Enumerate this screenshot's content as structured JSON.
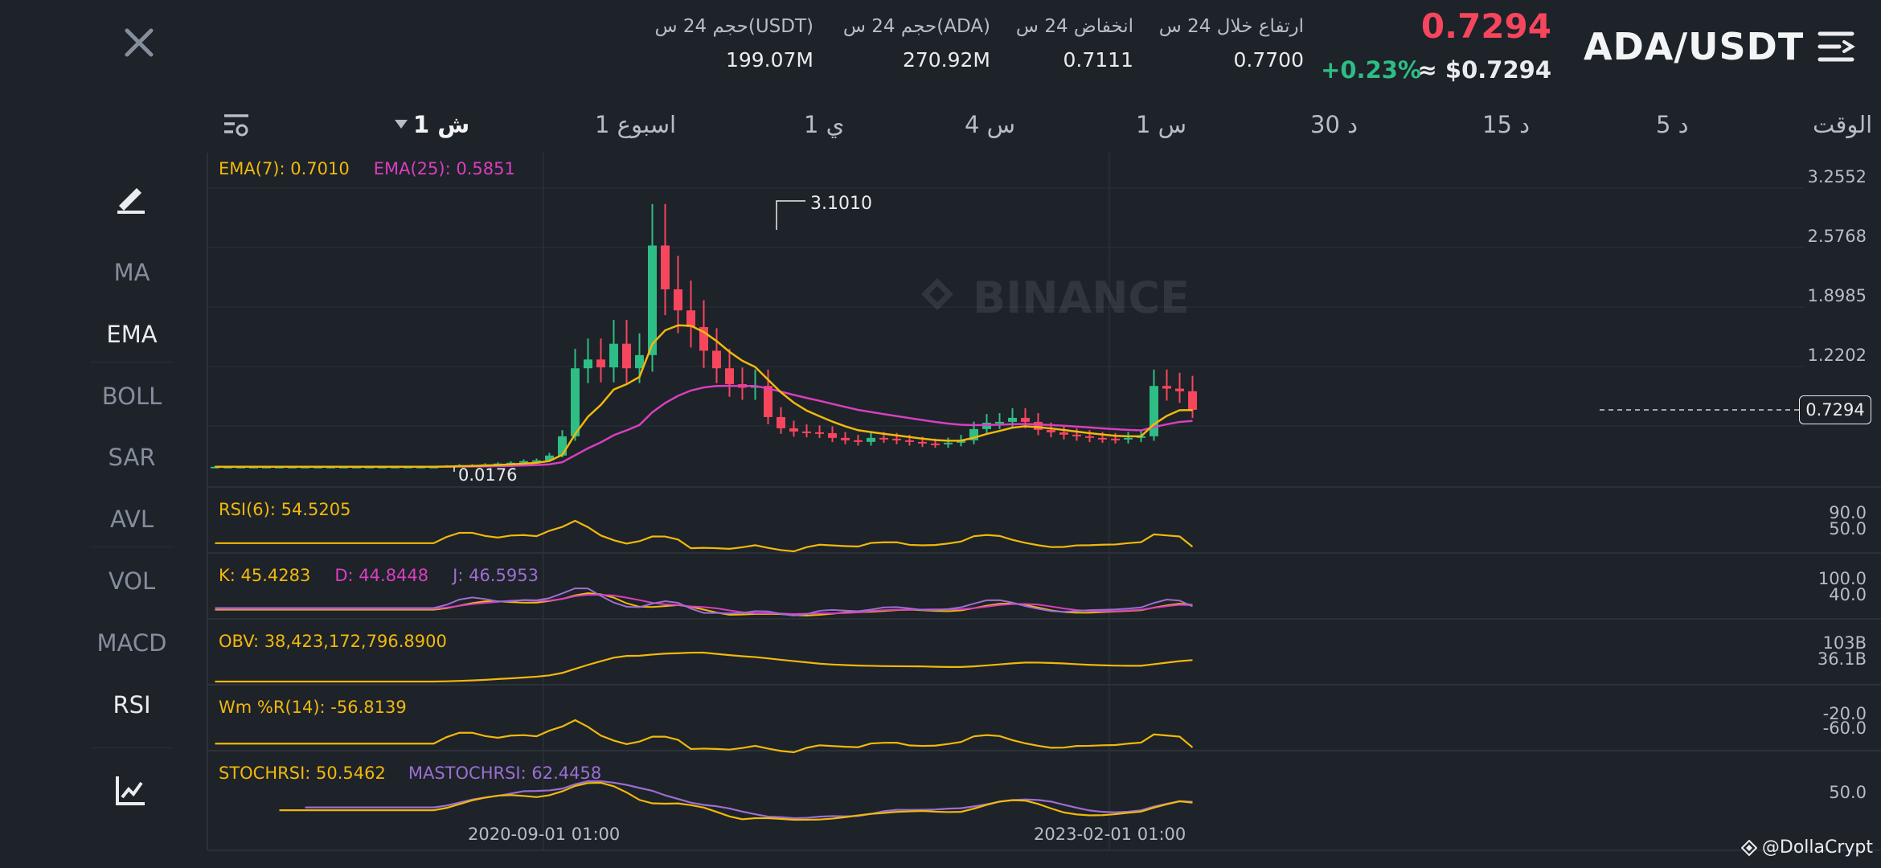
{
  "header": {
    "pair": "ADA/USDT",
    "last_price": "0.7294",
    "usd_price": "≈ $0.7294",
    "change_pct": "+0.23%",
    "stats": [
      {
        "label": "ارتفاع خلال 24 س",
        "value": "0.7700"
      },
      {
        "label": "انخفاض 24 س",
        "value": "0.7111"
      },
      {
        "label": "حجم 24 س(ADA)",
        "value": "270.92M"
      },
      {
        "label": "حجم 24 س(USDT)",
        "value": "199.07M"
      }
    ]
  },
  "timeframes": {
    "label": "الوقت",
    "items": [
      "5 د",
      "15 د",
      "30 د",
      "1 س",
      "4 س",
      "1 ي",
      "1 اسبوع",
      "1 ش"
    ],
    "active": "1 ش"
  },
  "indicators": {
    "items": [
      "MA",
      "EMA",
      "BOLL",
      "SAR",
      "AVL",
      "VOL",
      "MACD",
      "RSI"
    ],
    "active": [
      "EMA",
      "RSI"
    ]
  },
  "legends": {
    "ema7": "EMA(7): 0.7010",
    "ema25": "EMA(25): 0.5851",
    "rsi": "RSI(6): 54.5205",
    "k": "K: 45.4283",
    "d": "D: 44.8448",
    "j": "J: 46.5953",
    "obv": "OBV: 38,423,172,796.8900",
    "wr": "Wm %R(14): -56.8139",
    "stochrsi": "STOCHRSI: 50.5462",
    "mastochrsi": "MASTOCHRSI: 62.4458"
  },
  "price_scale": [
    "3.2552",
    "2.5768",
    "1.8985",
    "1.2202"
  ],
  "current_price_tag": "0.7294",
  "sub_scales": {
    "rsi": [
      "90.0",
      "50.0"
    ],
    "kdj": [
      "100.0",
      "40.0"
    ],
    "obv": [
      "103B",
      "36.1B"
    ],
    "wr": [
      "-20.0",
      "-60.0"
    ],
    "stochrsi": [
      "50.0"
    ]
  },
  "markers": {
    "high": "3.1010",
    "low": "0.0176"
  },
  "date_labels": [
    "2020-09-01 01:00",
    "2023-02-01 01:00"
  ],
  "watermark": "BINANCE",
  "credit": "@DollaCrypt",
  "colors": {
    "up": "#2ebd85",
    "down": "#f6465d",
    "ema7": "#f0b90b",
    "ema25": "#d83fbf",
    "stoch_ma": "#9b6fd1",
    "background": "#1e2229"
  },
  "icons": {
    "close": "close-icon",
    "menu": "menu-icon",
    "settings": "chart-settings-icon",
    "draw": "draw-pen-icon",
    "indicator": "indicator-chart-icon"
  },
  "chart_data": {
    "type": "candlestick",
    "interval": "1M",
    "ylim": [
      0.0,
      3.2552
    ],
    "ohlc_close_approx": [
      0.02,
      0.02,
      0.02,
      0.02,
      0.02,
      0.02,
      0.02,
      0.02,
      0.02,
      0.02,
      0.02,
      0.02,
      0.02,
      0.02,
      0.02,
      0.02,
      0.02,
      0.02,
      0.03,
      0.04,
      0.04,
      0.05,
      0.06,
      0.07,
      0.09,
      0.1,
      0.16,
      0.4,
      1.2,
      1.3,
      1.21,
      1.48,
      1.2,
      1.35,
      2.6,
      2.1,
      1.86,
      1.67,
      1.4,
      1.2,
      1.02,
      0.98,
      1.0,
      0.64,
      0.5,
      0.46,
      0.45,
      0.44,
      0.38,
      0.35,
      0.33,
      0.38,
      0.37,
      0.35,
      0.33,
      0.31,
      0.3,
      0.32,
      0.35,
      0.49,
      0.57,
      0.58,
      0.63,
      0.58,
      0.48,
      0.45,
      0.42,
      0.4,
      0.38,
      0.37,
      0.36,
      0.38,
      0.4,
      1.0,
      0.97,
      0.94,
      0.73
    ]
  }
}
